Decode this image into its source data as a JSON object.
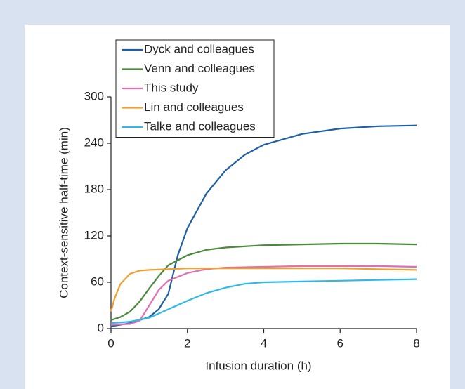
{
  "chart_data": {
    "type": "line",
    "xlabel": "Infusion duration (h)",
    "ylabel": "Context-sensitive half-time (min)",
    "xlim": [
      0,
      8
    ],
    "xticks": [
      0,
      2,
      4,
      6,
      8
    ],
    "ylim": [
      0,
      300
    ],
    "yticks": [
      0,
      60,
      120,
      180,
      240,
      300
    ],
    "legend": "top-left",
    "series": [
      {
        "name": "Dyck and colleagues",
        "color": "#1f5fa6",
        "x": [
          0,
          0.5,
          1,
          1.25,
          1.5,
          1.75,
          2,
          2.5,
          3,
          3.5,
          4,
          5,
          6,
          7,
          8
        ],
        "values": [
          3,
          7,
          15,
          25,
          45,
          95,
          130,
          175,
          205,
          225,
          238,
          252,
          259,
          262,
          263
        ]
      },
      {
        "name": "Venn and colleagues",
        "color": "#4a8a3a",
        "x": [
          0,
          0.25,
          0.5,
          0.75,
          1,
          1.25,
          1.5,
          2,
          2.5,
          3,
          4,
          5,
          6,
          7,
          8
        ],
        "values": [
          11,
          15,
          22,
          35,
          52,
          68,
          82,
          95,
          102,
          105,
          108,
          109,
          110,
          110,
          109
        ]
      },
      {
        "name": "This study",
        "color": "#e070b0",
        "x": [
          0,
          0.5,
          0.75,
          1,
          1.25,
          1.5,
          2,
          2.5,
          3,
          4,
          5,
          6,
          7,
          8
        ],
        "values": [
          5,
          6,
          10,
          30,
          50,
          62,
          72,
          77,
          79,
          80,
          81,
          81,
          81,
          80
        ]
      },
      {
        "name": "Lin and colleagues",
        "color": "#f0a030",
        "x": [
          0,
          0.1,
          0.25,
          0.5,
          0.75,
          1,
          1.5,
          2,
          3,
          4,
          5,
          6,
          7,
          8
        ],
        "values": [
          22,
          40,
          58,
          71,
          75,
          76,
          77,
          78,
          78,
          78,
          78,
          78,
          77,
          76
        ]
      },
      {
        "name": "Talke and colleagues",
        "color": "#30b8e8",
        "x": [
          0,
          0.5,
          1,
          1.5,
          2,
          2.5,
          3,
          3.5,
          4,
          5,
          6,
          7,
          8
        ],
        "values": [
          7,
          9,
          14,
          25,
          36,
          46,
          53,
          58,
          60,
          61,
          62,
          63,
          64
        ]
      }
    ]
  }
}
